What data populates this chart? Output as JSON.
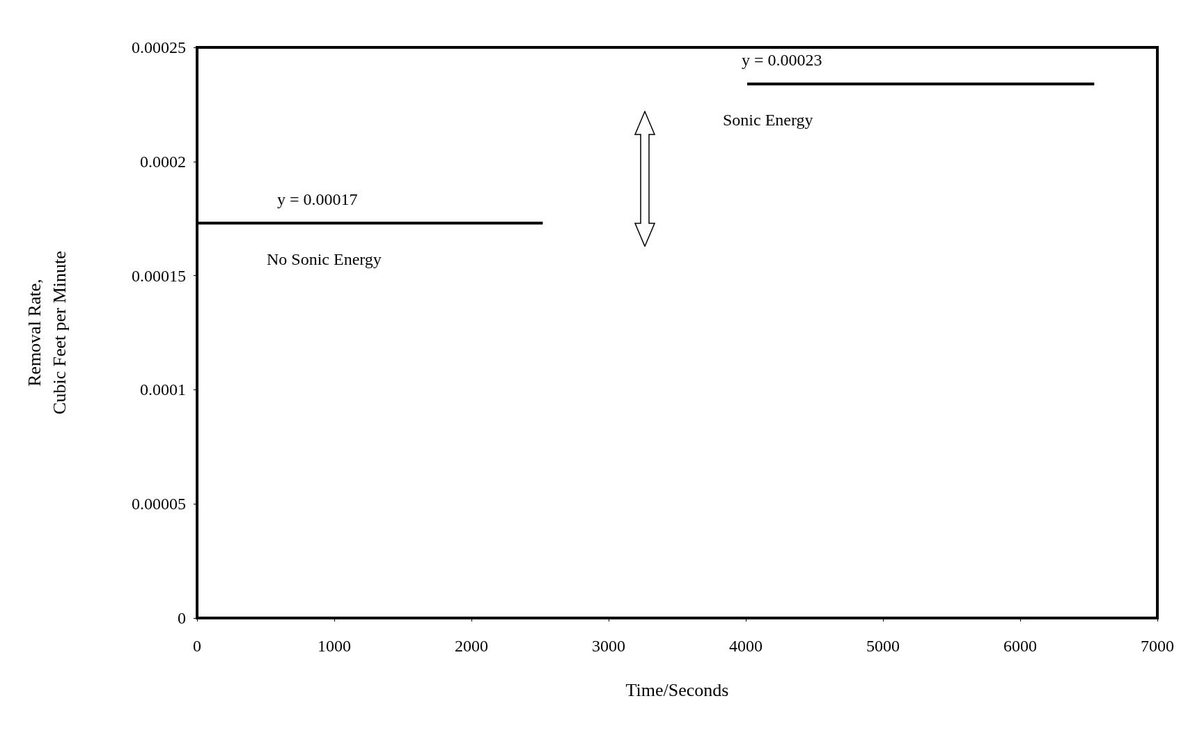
{
  "chart_data": {
    "type": "line",
    "xlabel": "Time/Seconds",
    "ylabel": "Removal Rate,\nCubic Feet per Minute",
    "series": [
      {
        "color": "#000000",
        "x": [
          0,
          2520
        ],
        "values": [
          0.000173,
          0.000173
        ]
      },
      {
        "color": "#000000",
        "x": [
          4010,
          6540
        ],
        "values": [
          0.000234,
          0.000234
        ]
      }
    ],
    "xlim": [
      0,
      7000
    ],
    "xticks": [
      0,
      1000,
      2000,
      3000,
      4000,
      5000,
      6000,
      7000
    ],
    "ylim": [
      0,
      0.00025
    ],
    "yticks": [
      0,
      {
        "value": 5e-05,
        "label": "0.00005"
      },
      0.0001,
      0.00015,
      0.0002,
      0.00025
    ],
    "annotations": [
      "y = 0.00017",
      "No Sonic Energy",
      "y = 0.00023",
      "Sonic Energy"
    ],
    "grid": false,
    "marker": "none",
    "line_style": "solid"
  }
}
